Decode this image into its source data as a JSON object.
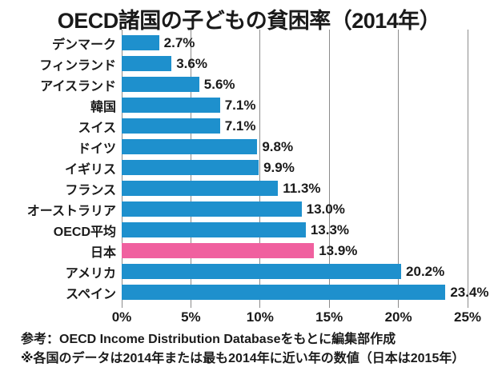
{
  "title": "OECD諸国の子どもの貧困率（2014年）",
  "footnotes": {
    "source": "参考：OECD Income Distribution Databaseをもとに編集部作成",
    "note": "※各国のデータは2014年または最も2014年に近い年の数値（日本は2015年）"
  },
  "colors": {
    "bar": "#1E90CD",
    "highlight": "#F0609F",
    "gridline": "#8C8C8C",
    "text": "#1A1A1A"
  },
  "chart_data": {
    "type": "bar",
    "orientation": "horizontal",
    "title": "OECD諸国の子どもの貧困率（2014年）",
    "categories": [
      "デンマーク",
      "フィンランド",
      "アイスランド",
      "韓国",
      "スイス",
      "ドイツ",
      "イギリス",
      "フランス",
      "オーストラリア",
      "OECD平均",
      "日本",
      "アメリカ",
      "スペイン"
    ],
    "values": [
      2.7,
      3.6,
      5.6,
      7.1,
      7.1,
      9.8,
      9.9,
      11.3,
      13.0,
      13.3,
      13.9,
      20.2,
      23.4
    ],
    "value_labels": [
      "2.7%",
      "3.6%",
      "5.6%",
      "7.1%",
      "7.1%",
      "9.8%",
      "9.9%",
      "11.3%",
      "13.0%",
      "13.3%",
      "13.9%",
      "20.2%",
      "23.4%"
    ],
    "highlight_index": 10,
    "highlight_category": "日本",
    "x_ticks": [
      "0%",
      "5%",
      "10%",
      "15%",
      "20%",
      "25%"
    ],
    "xlim": [
      0,
      25
    ],
    "grid": "vertical",
    "legend": "none"
  }
}
